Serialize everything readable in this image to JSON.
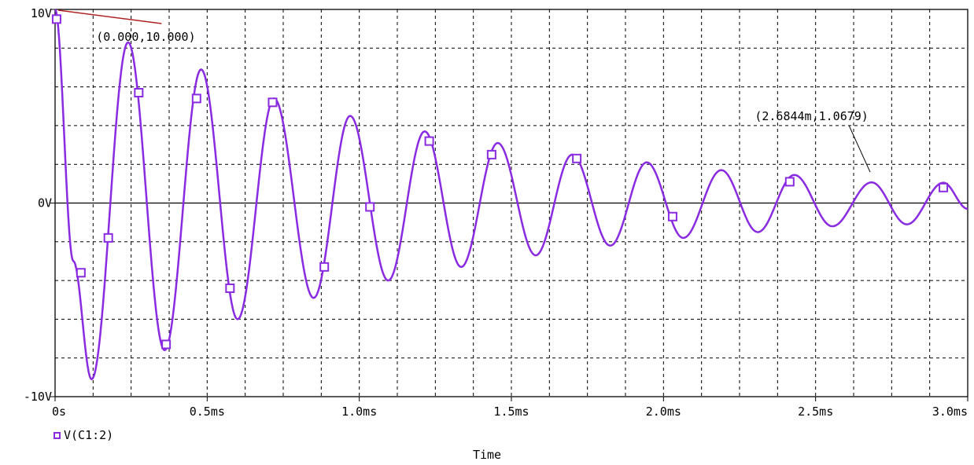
{
  "chart_data": {
    "type": "line",
    "title": "",
    "xlabel": "Time",
    "ylabel": "",
    "x_unit": "ms",
    "xlim": [
      0,
      3.0
    ],
    "ylim": [
      -10,
      10
    ],
    "x_ticks": [
      {
        "value": 0,
        "label": "0s"
      },
      {
        "value": 0.5,
        "label": "0.5ms"
      },
      {
        "value": 1.0,
        "label": "1.0ms"
      },
      {
        "value": 1.5,
        "label": "1.5ms"
      },
      {
        "value": 2.0,
        "label": "2.0ms"
      },
      {
        "value": 2.5,
        "label": "2.5ms"
      },
      {
        "value": 3.0,
        "label": "3.0ms"
      }
    ],
    "y_ticks": [
      {
        "value": 10,
        "label": "10V"
      },
      {
        "value": 0,
        "label": "0V"
      },
      {
        "value": -10,
        "label": "-10V"
      }
    ],
    "grid": "dashed",
    "legend_position": "bottom-left",
    "series": [
      {
        "name": "V(C1:2)",
        "color": "#8a2be2",
        "marker": "square",
        "x": [
          0.0,
          0.06,
          0.12,
          0.24,
          0.36,
          0.48,
          0.6,
          0.72,
          0.85,
          0.97,
          1.095,
          1.215,
          1.335,
          1.455,
          1.58,
          1.7,
          1.825,
          1.945,
          2.065,
          2.19,
          2.31,
          2.43,
          2.555,
          2.684,
          2.8,
          2.92,
          3.0
        ],
        "y": [
          10.0,
          -3.0,
          -9.1,
          8.3,
          -7.6,
          6.9,
          -6.0,
          5.4,
          -4.9,
          4.5,
          -4.0,
          3.7,
          -3.3,
          3.1,
          -2.7,
          2.5,
          -2.2,
          2.1,
          -1.8,
          1.7,
          -1.5,
          1.45,
          -1.2,
          1.0679,
          -1.1,
          1.05,
          -0.3
        ]
      }
    ],
    "marker_points": {
      "x": [
        0.005,
        0.085,
        0.175,
        0.275,
        0.365,
        0.465,
        0.575,
        0.715,
        0.885,
        1.035,
        1.23,
        1.435,
        1.715,
        2.03,
        2.415,
        2.92
      ],
      "y": [
        9.5,
        -3.6,
        -1.8,
        5.7,
        -7.3,
        5.4,
        -4.4,
        5.2,
        -3.3,
        -0.2,
        3.2,
        2.5,
        2.3,
        -0.7,
        1.1,
        0.8
      ]
    },
    "annotations": [
      {
        "text": "(0.000,10.000)",
        "x": 0.0,
        "y": 10.0
      },
      {
        "text": "(2.6844m,1.0679)",
        "x": 2.6844,
        "y": 1.0679
      }
    ]
  }
}
